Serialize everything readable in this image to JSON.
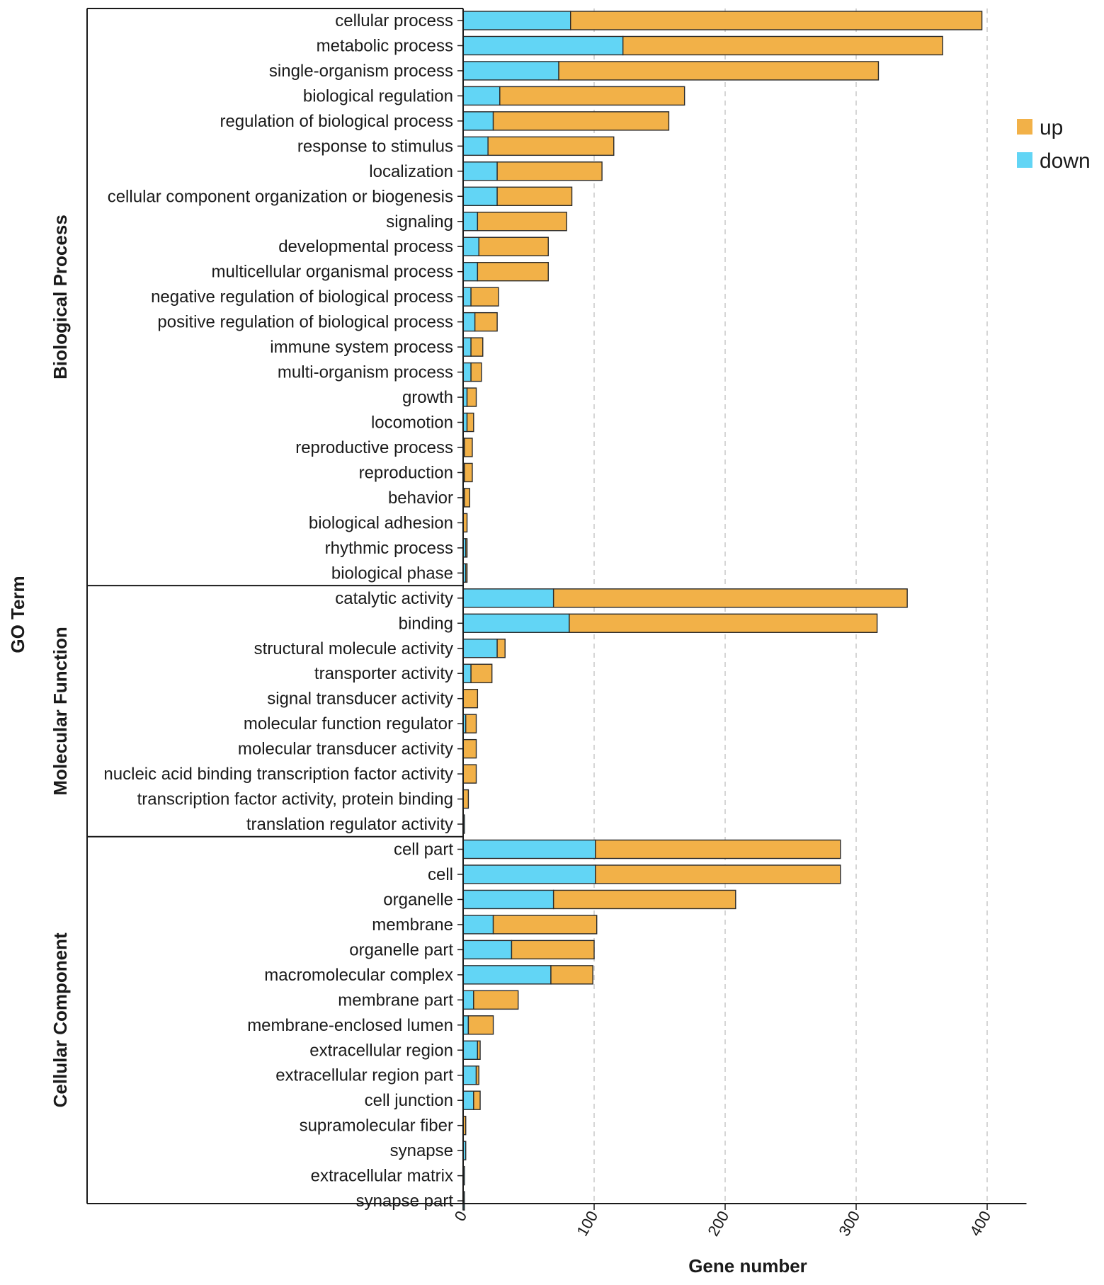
{
  "chart_data": {
    "type": "bar",
    "orientation": "horizontal",
    "stacked": true,
    "xlabel": "Gene number",
    "ylabel": "GO Term",
    "xlim": [
      0,
      430
    ],
    "xticks": [
      0,
      100,
      200,
      300,
      400
    ],
    "xtick_labels": [
      "0",
      "100",
      "200",
      "300",
      "400"
    ],
    "grid": "vertical dashed",
    "legend": {
      "position": "top-right",
      "entries": [
        {
          "name": "up",
          "color": "#F2B148"
        },
        {
          "name": "down",
          "color": "#62D5F5"
        }
      ]
    },
    "groups": [
      {
        "name": "Biological Process",
        "categories": [
          {
            "label": "cellular process",
            "down": 82,
            "up": 314
          },
          {
            "label": "metabolic process",
            "down": 122,
            "up": 244
          },
          {
            "label": "single-organism process",
            "down": 73,
            "up": 244
          },
          {
            "label": "biological regulation",
            "down": 28,
            "up": 141
          },
          {
            "label": "regulation of biological process",
            "down": 23,
            "up": 134
          },
          {
            "label": "response to stimulus",
            "down": 19,
            "up": 96
          },
          {
            "label": "localization",
            "down": 26,
            "up": 80
          },
          {
            "label": "cellular component organization or biogenesis",
            "down": 26,
            "up": 57
          },
          {
            "label": "signaling",
            "down": 11,
            "up": 68
          },
          {
            "label": "developmental process",
            "down": 12,
            "up": 53
          },
          {
            "label": "multicellular organismal process",
            "down": 11,
            "up": 54
          },
          {
            "label": "negative regulation of biological process",
            "down": 6,
            "up": 21
          },
          {
            "label": "positive regulation of biological process",
            "down": 9,
            "up": 17
          },
          {
            "label": "immune system process",
            "down": 6,
            "up": 9
          },
          {
            "label": "multi-organism process",
            "down": 6,
            "up": 8
          },
          {
            "label": "growth",
            "down": 3,
            "up": 7
          },
          {
            "label": "locomotion",
            "down": 3,
            "up": 5
          },
          {
            "label": "reproductive process",
            "down": 1,
            "up": 6
          },
          {
            "label": "reproduction",
            "down": 1,
            "up": 6
          },
          {
            "label": "behavior",
            "down": 1,
            "up": 4
          },
          {
            "label": "biological adhesion",
            "down": 0,
            "up": 3
          },
          {
            "label": "rhythmic process",
            "down": 2,
            "up": 1
          },
          {
            "label": "biological phase",
            "down": 2,
            "up": 1
          }
        ]
      },
      {
        "name": "Molecular Function",
        "categories": [
          {
            "label": "catalytic activity",
            "down": 69,
            "up": 270
          },
          {
            "label": "binding",
            "down": 81,
            "up": 235
          },
          {
            "label": "structural molecule activity",
            "down": 26,
            "up": 6
          },
          {
            "label": "transporter activity",
            "down": 6,
            "up": 16
          },
          {
            "label": "signal transducer activity",
            "down": 0,
            "up": 11
          },
          {
            "label": "molecular function regulator",
            "down": 2,
            "up": 8
          },
          {
            "label": "molecular transducer activity",
            "down": 0,
            "up": 10
          },
          {
            "label": "nucleic acid binding transcription factor activity",
            "down": 0,
            "up": 10
          },
          {
            "label": "transcription factor activity, protein binding",
            "down": 0,
            "up": 4
          },
          {
            "label": "translation regulator activity",
            "down": 1,
            "up": 0
          }
        ]
      },
      {
        "name": "Cellular Component",
        "categories": [
          {
            "label": "cell part",
            "down": 101,
            "up": 187
          },
          {
            "label": "cell",
            "down": 101,
            "up": 187
          },
          {
            "label": "organelle",
            "down": 69,
            "up": 139
          },
          {
            "label": "membrane",
            "down": 23,
            "up": 79
          },
          {
            "label": "organelle part",
            "down": 37,
            "up": 63
          },
          {
            "label": "macromolecular complex",
            "down": 67,
            "up": 32
          },
          {
            "label": "membrane part",
            "down": 8,
            "up": 34
          },
          {
            "label": "membrane-enclosed lumen",
            "down": 4,
            "up": 19
          },
          {
            "label": "extracellular region",
            "down": 11,
            "up": 2
          },
          {
            "label": "extracellular region part",
            "down": 10,
            "up": 2
          },
          {
            "label": "cell junction",
            "down": 8,
            "up": 5
          },
          {
            "label": "supramolecular fiber",
            "down": 0,
            "up": 2
          },
          {
            "label": "synapse",
            "down": 2,
            "up": 0
          },
          {
            "label": "extracellular matrix",
            "down": 1,
            "up": 0
          },
          {
            "label": "synapse part",
            "down": 1,
            "up": 0
          }
        ]
      }
    ]
  }
}
